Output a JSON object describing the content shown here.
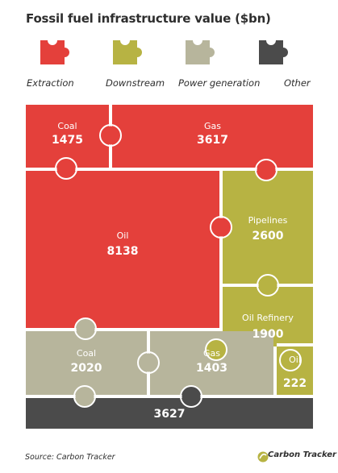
{
  "page": {
    "title": "Fossil fuel infrastructure value ($bn)",
    "source": "Source: Carbon Tracker",
    "logo_text": "Carbon Tracker",
    "logo_subtext": "Initiative"
  },
  "colors": {
    "Extraction": "#e4403b",
    "Downstream": "#b7b343",
    "Power generation": "#b7b59c",
    "Other": "#4b4b4b"
  },
  "chart_data": {
    "type": "treemap",
    "title": "Fossil fuel infrastructure value ($bn)",
    "legend": [
      "Extraction",
      "Downstream",
      "Power generation",
      "Other"
    ],
    "legend_placement": "top",
    "items": [
      {
        "name": "Coal",
        "value": 1475,
        "group": "Extraction"
      },
      {
        "name": "Gas",
        "value": 3617,
        "group": "Extraction"
      },
      {
        "name": "Oil",
        "value": 8138,
        "group": "Extraction"
      },
      {
        "name": "Pipelines",
        "value": 2600,
        "group": "Downstream"
      },
      {
        "name": "Oil Refinery",
        "value": 1900,
        "group": "Downstream"
      },
      {
        "name": "Oil",
        "value": 222,
        "group": "Downstream"
      },
      {
        "name": "Coal",
        "value": 2020,
        "group": "Power generation"
      },
      {
        "name": "Gas",
        "value": 1403,
        "group": "Power generation"
      },
      {
        "name": "",
        "value": 3627,
        "group": "Other"
      }
    ]
  }
}
